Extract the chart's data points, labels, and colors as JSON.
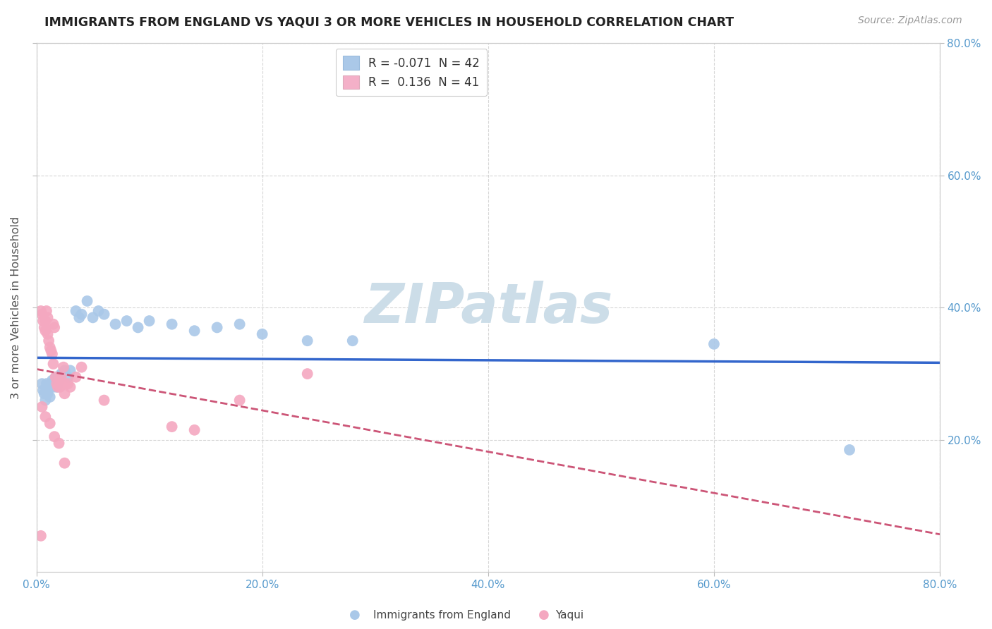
{
  "title": "IMMIGRANTS FROM ENGLAND VS YAQUI 3 OR MORE VEHICLES IN HOUSEHOLD CORRELATION CHART",
  "source": "Source: ZipAtlas.com",
  "ylabel": "3 or more Vehicles in Household",
  "xlim": [
    0.0,
    0.8
  ],
  "ylim": [
    0.0,
    0.8
  ],
  "xtick_labels": [
    "0.0%",
    "20.0%",
    "40.0%",
    "60.0%",
    "80.0%"
  ],
  "xtick_values": [
    0.0,
    0.2,
    0.4,
    0.6,
    0.8
  ],
  "ytick_labels": [
    "20.0%",
    "40.0%",
    "60.0%",
    "80.0%"
  ],
  "ytick_values": [
    0.2,
    0.4,
    0.6,
    0.8
  ],
  "legend_entry1": "R = -0.071  N = 42",
  "legend_entry2": "R =  0.136  N = 41",
  "legend_color1": "#aac8e8",
  "legend_color2": "#f4b0c8",
  "dot_color1": "#aac8e8",
  "dot_color2": "#f4a8c0",
  "line_color1": "#3366cc",
  "line_color2": "#cc5577",
  "watermark_text": "ZIPatlas",
  "watermark_color": "#ccdde8",
  "scatter_england_x": [
    0.005,
    0.006,
    0.007,
    0.008,
    0.009,
    0.01,
    0.01,
    0.011,
    0.012,
    0.013,
    0.014,
    0.015,
    0.016,
    0.017,
    0.018,
    0.019,
    0.02,
    0.021,
    0.022,
    0.025,
    0.028,
    0.03,
    0.035,
    0.038,
    0.04,
    0.045,
    0.05,
    0.055,
    0.06,
    0.07,
    0.08,
    0.09,
    0.1,
    0.12,
    0.14,
    0.16,
    0.18,
    0.2,
    0.24,
    0.28,
    0.6,
    0.72
  ],
  "scatter_england_y": [
    0.285,
    0.275,
    0.27,
    0.26,
    0.285,
    0.27,
    0.275,
    0.28,
    0.265,
    0.285,
    0.29,
    0.28,
    0.285,
    0.295,
    0.28,
    0.285,
    0.29,
    0.295,
    0.3,
    0.305,
    0.295,
    0.305,
    0.395,
    0.385,
    0.39,
    0.41,
    0.385,
    0.395,
    0.39,
    0.375,
    0.38,
    0.37,
    0.38,
    0.375,
    0.365,
    0.37,
    0.375,
    0.36,
    0.35,
    0.35,
    0.345,
    0.185
  ],
  "scatter_yaqui_x": [
    0.004,
    0.005,
    0.006,
    0.007,
    0.008,
    0.008,
    0.009,
    0.01,
    0.01,
    0.011,
    0.012,
    0.013,
    0.014,
    0.015,
    0.015,
    0.016,
    0.017,
    0.018,
    0.019,
    0.02,
    0.021,
    0.022,
    0.024,
    0.025,
    0.025,
    0.028,
    0.03,
    0.035,
    0.04,
    0.06,
    0.12,
    0.14,
    0.18,
    0.24,
    0.005,
    0.008,
    0.012,
    0.016,
    0.02,
    0.025,
    0.004
  ],
  "scatter_yaqui_y": [
    0.395,
    0.39,
    0.38,
    0.37,
    0.365,
    0.38,
    0.395,
    0.385,
    0.36,
    0.35,
    0.34,
    0.335,
    0.33,
    0.315,
    0.375,
    0.37,
    0.295,
    0.285,
    0.28,
    0.29,
    0.28,
    0.295,
    0.31,
    0.285,
    0.27,
    0.285,
    0.28,
    0.295,
    0.31,
    0.26,
    0.22,
    0.215,
    0.26,
    0.3,
    0.25,
    0.235,
    0.225,
    0.205,
    0.195,
    0.165,
    0.055
  ]
}
